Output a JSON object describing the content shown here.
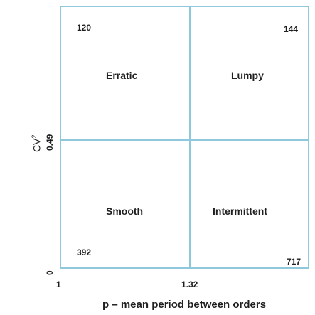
{
  "diagram": {
    "quadrants": {
      "erratic": {
        "name": "Erratic",
        "count": "120"
      },
      "lumpy": {
        "name": "Lumpy",
        "count": "144"
      },
      "smooth": {
        "name": "Smooth",
        "count": "392"
      },
      "intermittent": {
        "name": "Intermittent",
        "count": "717"
      }
    },
    "axes": {
      "x": {
        "title": "p – mean period between orders",
        "ticks": [
          "1",
          "1.32"
        ]
      },
      "y": {
        "title_main": "CV",
        "title_exponent": "2",
        "ticks": [
          "0",
          "0.49"
        ]
      }
    },
    "colors": {
      "grid": "#8fc7dc",
      "text": "#1f1f1f"
    }
  }
}
